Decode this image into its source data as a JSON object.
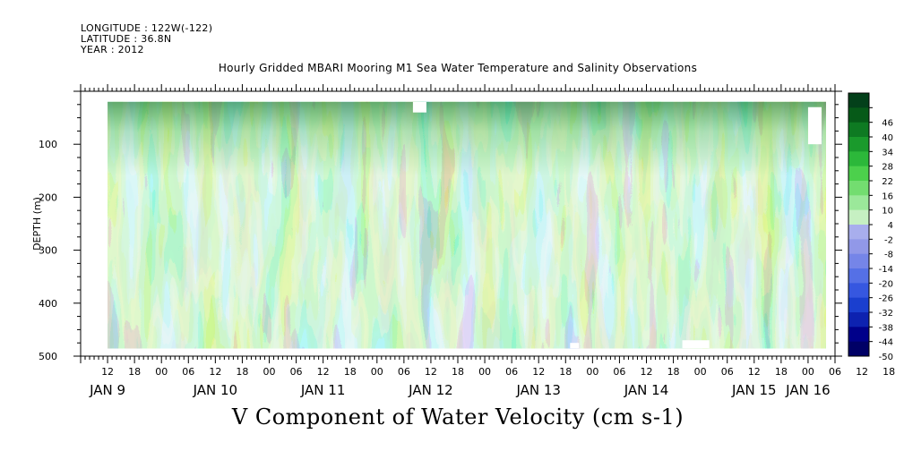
{
  "header": {
    "longitude": "LONGITUDE : 122W(-122)",
    "latitude": "LATITUDE : 36.8N",
    "year": "YEAR : 2012"
  },
  "title": "Hourly Gridded MBARI Mooring M1 Sea Water Temperature and Salinity Observations",
  "bottom_title": "V Component of Water Velocity (cm s-1)",
  "chart_data": {
    "type": "heatmap",
    "title": "Hourly Gridded MBARI Mooring M1 Sea Water Temperature and Salinity Observations",
    "xlabel": "",
    "ylabel": "DEPTH (m)",
    "colorbar_label": "V Component of Water Velocity (cm s-1)",
    "x_start": "2012-01-09T06:00",
    "x_end": "2012-01-16T06:00",
    "x_data_start": "2012-01-09T12:00",
    "x_data_end": "2012-01-16T04:00",
    "ylim": [
      500,
      0
    ],
    "y_data_range": [
      20,
      485
    ],
    "y_ticks": [
      100,
      200,
      300,
      400,
      500
    ],
    "x_hour_ticks": [
      "12",
      "18",
      "00",
      "06",
      "12",
      "18",
      "00",
      "06",
      "12",
      "18",
      "00",
      "06",
      "12",
      "18",
      "00",
      "06",
      "12",
      "18",
      "00",
      "06",
      "12",
      "18",
      "00",
      "06",
      "12",
      "18",
      "00",
      "06",
      "12",
      "18",
      "00"
    ],
    "x_day_labels": [
      {
        "label": "JAN  9",
        "time": "2012-01-09T12:00"
      },
      {
        "label": "JAN 10",
        "time": "2012-01-10T12:00"
      },
      {
        "label": "JAN 11",
        "time": "2012-01-11T12:00"
      },
      {
        "label": "JAN 12",
        "time": "2012-01-12T12:00"
      },
      {
        "label": "JAN 13",
        "time": "2012-01-13T12:00"
      },
      {
        "label": "JAN 14",
        "time": "2012-01-14T12:00"
      },
      {
        "label": "JAN 15",
        "time": "2012-01-15T12:00"
      },
      {
        "label": "JAN 16",
        "time": "2012-01-16T00:00"
      }
    ],
    "colorbar": {
      "levels": [
        -50,
        -44,
        -38,
        -32,
        -26,
        -20,
        -14,
        -8,
        -2,
        4,
        10,
        16,
        22,
        28,
        34,
        40,
        46
      ],
      "tick_labels": [
        "-50",
        "-44",
        "-38",
        "-32",
        "-26",
        "-20",
        "-14",
        "-8",
        "-2",
        "4",
        "10",
        "16",
        "22",
        "28",
        "34",
        "40",
        "46"
      ],
      "colors": [
        "#000066",
        "#00008a",
        "#0d22b0",
        "#1a3fcf",
        "#3657e0",
        "#5570e6",
        "#7585e8",
        "#9198e8",
        "#a8aeed",
        "#c6f0c2",
        "#9be89a",
        "#73dd70",
        "#4cd04c",
        "#2cb83a",
        "#1a9a2c",
        "#0e7a22",
        "#065a18",
        "#03401a"
      ]
    },
    "missing_blocks": [
      {
        "time_start": "2012-01-12T08:00",
        "time_end": "2012-01-12T11:00",
        "depth_start": 20,
        "depth_end": 40
      },
      {
        "time_start": "2012-01-16T00:00",
        "time_end": "2012-01-16T03:00",
        "depth_start": 30,
        "depth_end": 100
      },
      {
        "time_start": "2012-01-13T19:00",
        "time_end": "2012-01-13T21:00",
        "depth_start": 475,
        "depth_end": 485
      },
      {
        "time_start": "2012-01-14T20:00",
        "time_end": "2012-01-15T02:00",
        "depth_start": 470,
        "depth_end": 485
      }
    ]
  }
}
